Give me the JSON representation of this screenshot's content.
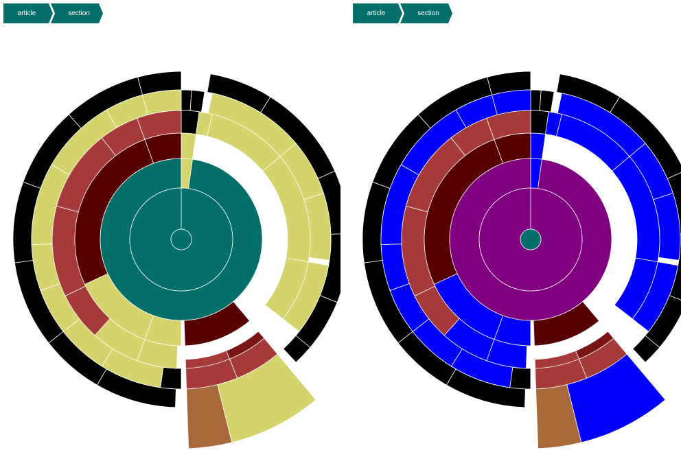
{
  "colors": {
    "breadcrumb": "#046e69",
    "teal": "#046e69",
    "dark_red": "#570000",
    "red": "#a63a3a",
    "khaki": "#d5d36c",
    "black": "#000000",
    "maroon": "#7a1515",
    "brown": "#a8693a",
    "olive": "#b3b046",
    "purple": "#800080",
    "blue": "#0000ff",
    "bright_red": "#ff0000"
  },
  "panels": [
    {
      "name": "left",
      "breadcrumb": [
        "article",
        "section"
      ],
      "center_color": "teal",
      "rings_color": "teal",
      "palette": "khaki"
    },
    {
      "name": "right",
      "breadcrumb": [
        "article",
        "section"
      ],
      "center_color": "teal",
      "rings_color": "purple",
      "palette": "blue"
    }
  ]
}
